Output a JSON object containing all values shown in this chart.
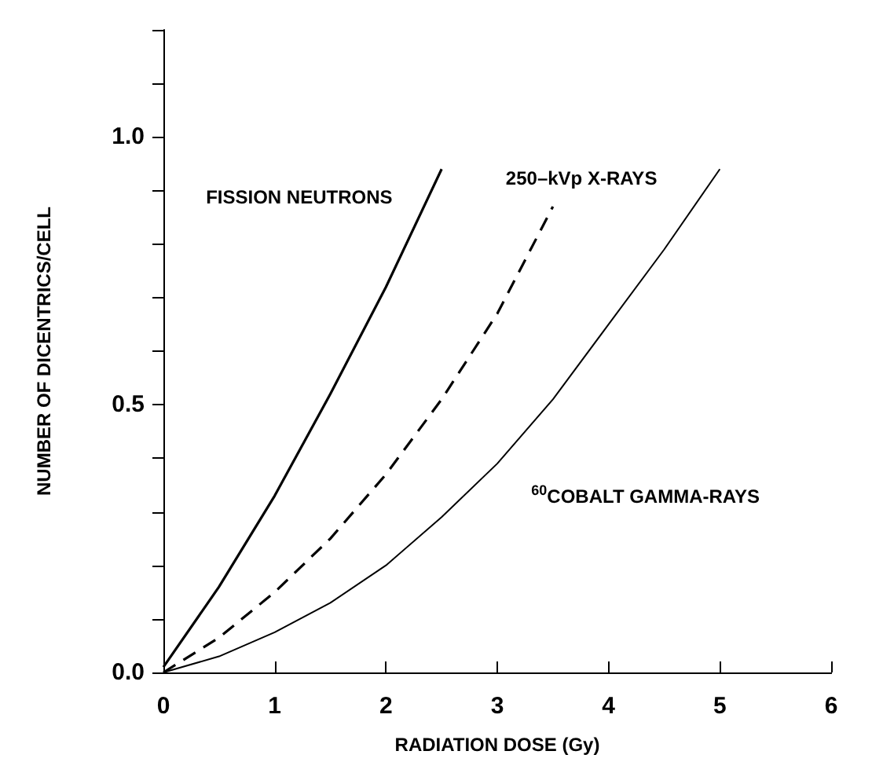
{
  "chart_data": {
    "type": "line",
    "xlabel": "RADIATION DOSE (Gy)",
    "ylabel": "NUMBER OF DICENTRICS/CELL",
    "xlim": [
      0,
      6
    ],
    "xticks": [
      0,
      1,
      2,
      3,
      4,
      5,
      6
    ],
    "ylim": [
      0,
      1.2
    ],
    "yticks": [
      {
        "value": 0,
        "label": "0.0"
      },
      {
        "value": 0.1,
        "label": null
      },
      {
        "value": 0.2,
        "label": null
      },
      {
        "value": 0.3,
        "label": null
      },
      {
        "value": 0.4,
        "label": null
      },
      {
        "value": 0.5,
        "label": "0.5"
      },
      {
        "value": 0.6,
        "label": null
      },
      {
        "value": 0.7,
        "label": null
      },
      {
        "value": 0.8,
        "label": null
      },
      {
        "value": 0.9,
        "label": null
      },
      {
        "value": 1.0,
        "label": "1.0"
      },
      {
        "value": 1.1,
        "label": null
      },
      {
        "value": 1.2,
        "label": null
      }
    ],
    "grid": false,
    "legend": false,
    "marker": "none",
    "series": [
      {
        "name": "FISSION NEUTRONS",
        "color": "#000000",
        "line_style": "solid",
        "x": [
          0,
          0.5,
          1,
          1.5,
          2,
          2.5
        ],
        "values": [
          0.01,
          0.16,
          0.33,
          0.52,
          0.72,
          0.94
        ]
      },
      {
        "name": "250–kVp X-RAYS",
        "color": "#000000",
        "line_style": "dashed",
        "x": [
          0,
          0.5,
          1,
          1.5,
          2,
          2.5,
          3,
          3.5
        ],
        "values": [
          0,
          0.065,
          0.15,
          0.25,
          0.37,
          0.51,
          0.67,
          0.87
        ]
      },
      {
        "name": "$^{60}$COBALT GAMMA-RAYS",
        "color": "#000000",
        "line_style": "solid",
        "x": [
          0,
          0.5,
          1,
          1.5,
          2,
          2.5,
          3,
          3.5,
          4,
          4.5,
          5
        ],
        "values": [
          0,
          0.03,
          0.075,
          0.13,
          0.2,
          0.29,
          0.39,
          0.51,
          0.65,
          0.79,
          0.94
        ]
      }
    ]
  }
}
